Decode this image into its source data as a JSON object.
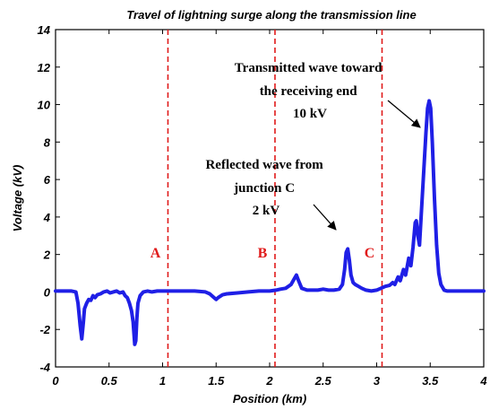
{
  "chart_data": {
    "type": "line",
    "title": "Travel of lightning surge along the transmission line",
    "xlabel": "Position (km)",
    "ylabel": "Voltage (kV)",
    "xlim": [
      0,
      4
    ],
    "ylim": [
      -4,
      14
    ],
    "x_ticks": [
      "0",
      "0.5",
      "1",
      "1.5",
      "2",
      "2.5",
      "3",
      "3.5",
      "4"
    ],
    "y_ticks": [
      "-4",
      "-2",
      "0",
      "2",
      "4",
      "6",
      "8",
      "10",
      "12",
      "14"
    ],
    "grid": false,
    "legend": "none",
    "series": [
      {
        "color": "#1f1fe6",
        "points": [
          [
            0.0,
            0.05
          ],
          [
            0.15,
            0.05
          ],
          [
            0.19,
            0.0
          ],
          [
            0.21,
            -0.6
          ],
          [
            0.23,
            -1.8
          ],
          [
            0.245,
            -2.5
          ],
          [
            0.26,
            -1.6
          ],
          [
            0.27,
            -0.9
          ],
          [
            0.29,
            -0.6
          ],
          [
            0.31,
            -0.4
          ],
          [
            0.33,
            -0.45
          ],
          [
            0.35,
            -0.2
          ],
          [
            0.37,
            -0.3
          ],
          [
            0.39,
            -0.15
          ],
          [
            0.42,
            -0.1
          ],
          [
            0.45,
            0.0
          ],
          [
            0.48,
            0.05
          ],
          [
            0.51,
            -0.05
          ],
          [
            0.54,
            0.0
          ],
          [
            0.57,
            0.05
          ],
          [
            0.6,
            -0.05
          ],
          [
            0.63,
            0.0
          ],
          [
            0.65,
            -0.2
          ],
          [
            0.67,
            -0.3
          ],
          [
            0.69,
            -0.6
          ],
          [
            0.71,
            -1.0
          ],
          [
            0.725,
            -1.6
          ],
          [
            0.74,
            -2.8
          ],
          [
            0.75,
            -2.6
          ],
          [
            0.76,
            -1.4
          ],
          [
            0.77,
            -0.6
          ],
          [
            0.79,
            -0.2
          ],
          [
            0.82,
            0.0
          ],
          [
            0.86,
            0.05
          ],
          [
            0.9,
            0.0
          ],
          [
            0.95,
            0.05
          ],
          [
            1.0,
            0.05
          ],
          [
            1.05,
            0.05
          ],
          [
            1.1,
            0.05
          ],
          [
            1.2,
            0.05
          ],
          [
            1.3,
            0.05
          ],
          [
            1.4,
            0.0
          ],
          [
            1.44,
            -0.1
          ],
          [
            1.48,
            -0.3
          ],
          [
            1.5,
            -0.4
          ],
          [
            1.52,
            -0.3
          ],
          [
            1.56,
            -0.15
          ],
          [
            1.6,
            -0.1
          ],
          [
            1.7,
            -0.05
          ],
          [
            1.8,
            0.0
          ],
          [
            1.9,
            0.05
          ],
          [
            2.0,
            0.05
          ],
          [
            2.06,
            0.1
          ],
          [
            2.1,
            0.15
          ],
          [
            2.15,
            0.2
          ],
          [
            2.2,
            0.4
          ],
          [
            2.23,
            0.7
          ],
          [
            2.25,
            0.9
          ],
          [
            2.27,
            0.6
          ],
          [
            2.3,
            0.2
          ],
          [
            2.35,
            0.1
          ],
          [
            2.4,
            0.1
          ],
          [
            2.45,
            0.1
          ],
          [
            2.5,
            0.15
          ],
          [
            2.55,
            0.1
          ],
          [
            2.6,
            0.1
          ],
          [
            2.65,
            0.15
          ],
          [
            2.68,
            0.4
          ],
          [
            2.7,
            1.2
          ],
          [
            2.715,
            2.1
          ],
          [
            2.73,
            2.3
          ],
          [
            2.745,
            1.7
          ],
          [
            2.76,
            0.9
          ],
          [
            2.78,
            0.5
          ],
          [
            2.8,
            0.4
          ],
          [
            2.83,
            0.3
          ],
          [
            2.86,
            0.2
          ],
          [
            2.9,
            0.1
          ],
          [
            2.95,
            0.05
          ],
          [
            3.0,
            0.1
          ],
          [
            3.04,
            0.2
          ],
          [
            3.08,
            0.3
          ],
          [
            3.12,
            0.35
          ],
          [
            3.15,
            0.5
          ],
          [
            3.17,
            0.4
          ],
          [
            3.2,
            0.8
          ],
          [
            3.22,
            0.6
          ],
          [
            3.25,
            1.2
          ],
          [
            3.27,
            0.9
          ],
          [
            3.3,
            1.8
          ],
          [
            3.32,
            1.4
          ],
          [
            3.34,
            2.4
          ],
          [
            3.36,
            3.7
          ],
          [
            3.37,
            3.8
          ],
          [
            3.385,
            3.0
          ],
          [
            3.4,
            2.5
          ],
          [
            3.42,
            4.5
          ],
          [
            3.44,
            6.5
          ],
          [
            3.46,
            8.5
          ],
          [
            3.475,
            9.8
          ],
          [
            3.49,
            10.2
          ],
          [
            3.505,
            9.8
          ],
          [
            3.52,
            8.0
          ],
          [
            3.54,
            5.0
          ],
          [
            3.56,
            2.5
          ],
          [
            3.58,
            1.0
          ],
          [
            3.6,
            0.4
          ],
          [
            3.63,
            0.1
          ],
          [
            3.66,
            0.05
          ],
          [
            3.7,
            0.05
          ],
          [
            3.8,
            0.05
          ],
          [
            3.9,
            0.05
          ],
          [
            4.0,
            0.05
          ]
        ]
      }
    ],
    "vertical_lines": [
      {
        "x": 1.05,
        "label": "A",
        "color": "#e01b1b"
      },
      {
        "x": 2.05,
        "label": "B",
        "color": "#e01b1b"
      },
      {
        "x": 3.05,
        "label": "C",
        "color": "#e01b1b"
      }
    ],
    "annotations": [
      {
        "lines": [
          "Transmitted wave toward",
          "the receiving end",
          "10 kV"
        ]
      },
      {
        "lines": [
          "Reflected wave from",
          "junction C",
          "2 kV"
        ]
      }
    ]
  }
}
